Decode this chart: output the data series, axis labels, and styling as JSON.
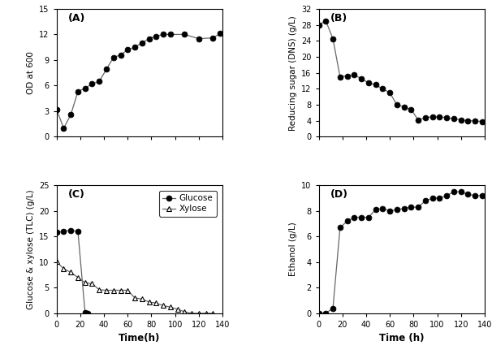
{
  "A": {
    "time": [
      0,
      6,
      12,
      18,
      24,
      30,
      36,
      42,
      48,
      54,
      60,
      66,
      72,
      78,
      84,
      90,
      96,
      108,
      120,
      132,
      138
    ],
    "od": [
      3.2,
      1.0,
      2.6,
      5.3,
      5.7,
      6.2,
      6.5,
      7.9,
      9.3,
      9.6,
      10.2,
      10.5,
      11.0,
      11.5,
      11.8,
      12.0,
      12.0,
      12.0,
      11.5,
      11.6,
      12.1
    ],
    "ylabel": "OD at 600",
    "ylim": [
      0,
      15
    ],
    "yticks": [
      0,
      3,
      6,
      9,
      12,
      15
    ],
    "label": "(A)"
  },
  "B": {
    "time": [
      0,
      6,
      12,
      18,
      24,
      30,
      36,
      42,
      48,
      54,
      60,
      66,
      72,
      78,
      84,
      90,
      96,
      102,
      108,
      114,
      120,
      126,
      132,
      138
    ],
    "rs": [
      28.0,
      29.0,
      24.5,
      15.0,
      15.2,
      15.5,
      14.5,
      13.5,
      13.0,
      12.0,
      11.0,
      8.0,
      7.5,
      6.8,
      4.2,
      4.8,
      5.0,
      5.0,
      4.8,
      4.5,
      4.2,
      4.0,
      4.0,
      3.8
    ],
    "ylabel": "Reducing sugar (DNS) (g/L)",
    "ylim": [
      0,
      32
    ],
    "yticks": [
      0,
      4,
      8,
      12,
      16,
      20,
      24,
      28,
      32
    ],
    "label": "(B)"
  },
  "C": {
    "glucose_time": [
      0,
      6,
      12,
      18,
      24,
      26
    ],
    "glucose": [
      15.8,
      16.0,
      16.2,
      16.0,
      0.2,
      0.0
    ],
    "xylose_time": [
      0,
      6,
      12,
      18,
      24,
      30,
      36,
      42,
      48,
      54,
      60,
      66,
      72,
      78,
      84,
      90,
      96,
      102,
      108,
      114,
      120,
      126,
      132
    ],
    "xylose": [
      10.1,
      8.7,
      8.0,
      7.0,
      6.0,
      5.8,
      4.6,
      4.5,
      4.5,
      4.5,
      4.5,
      3.0,
      2.8,
      2.2,
      2.0,
      1.5,
      1.2,
      0.8,
      0.3,
      0.0,
      0.0,
      0.0,
      0.0
    ],
    "ylabel": "Glucose & xylose (TLC) (g/L)",
    "ylim": [
      0,
      25
    ],
    "yticks": [
      0,
      5,
      10,
      15,
      20,
      25
    ],
    "label": "(C)"
  },
  "D": {
    "time": [
      0,
      6,
      12,
      18,
      24,
      30,
      36,
      42,
      48,
      54,
      60,
      66,
      72,
      78,
      84,
      90,
      96,
      102,
      108,
      114,
      120,
      126,
      132,
      138
    ],
    "ethanol": [
      0.0,
      0.0,
      0.4,
      6.7,
      7.2,
      7.5,
      7.5,
      7.5,
      8.1,
      8.2,
      8.0,
      8.1,
      8.2,
      8.3,
      8.3,
      8.8,
      9.0,
      9.0,
      9.2,
      9.5,
      9.5,
      9.3,
      9.2,
      9.2
    ],
    "ylabel": "Ethanol (g/L)",
    "ylim": [
      0,
      10
    ],
    "yticks": [
      0,
      2,
      4,
      6,
      8,
      10
    ],
    "label": "(D)"
  },
  "xlabel_left": "Time(h)",
  "xlabel_right": "Time (h)",
  "xlim": [
    0,
    140
  ],
  "xticks": [
    0,
    20,
    40,
    60,
    80,
    100,
    120,
    140
  ],
  "marker_filled": "o",
  "marker_open": "^",
  "marker_size": 5,
  "line_color": "#666666",
  "bg_color": "#ffffff"
}
